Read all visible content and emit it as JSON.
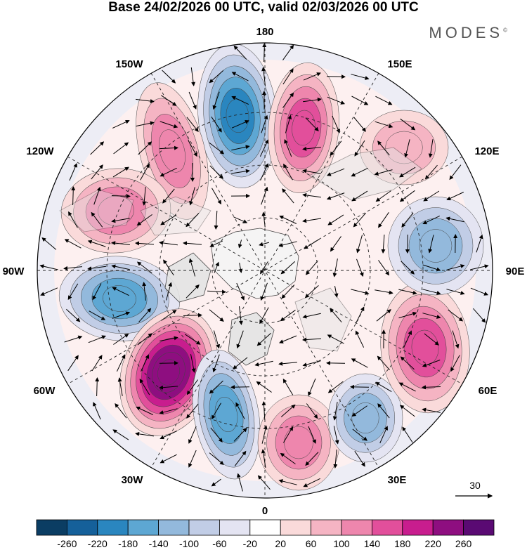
{
  "title": "Base 24/02/2026 00 UTC, valid 02/03/2026 00 UTC",
  "brand": "MODES",
  "brand_mark": "©",
  "longitude_labels": {
    "top": "180",
    "top_left": "150W",
    "top_right": "150E",
    "upper_left": "120W",
    "upper_right": "120E",
    "left": "90W",
    "right": "90E",
    "lower_left": "60W",
    "lower_right": "60E",
    "bottom_left": "30W",
    "bottom_right": "30E",
    "bottom": "0"
  },
  "reference_vector": {
    "label": "30"
  },
  "colorbar": {
    "ticks": [
      "-260",
      "-220",
      "-180",
      "-140",
      "-100",
      "-60",
      "-20",
      "20",
      "60",
      "100",
      "140",
      "180",
      "220",
      "260"
    ],
    "colors": [
      "#0b3d63",
      "#15609a",
      "#2a86bf",
      "#5da7d3",
      "#93b9dc",
      "#c1cde6",
      "#e4e4f2",
      "#ffffff",
      "#fadada",
      "#f5b4c3",
      "#ee86ad",
      "#e24f9b",
      "#c81d8e",
      "#8e0e80",
      "#5a0a73"
    ]
  },
  "anomaly_centers": [
    {
      "name": "pacific-negative",
      "lon": "180",
      "value": -200
    },
    {
      "name": "pacific-positive",
      "lon": "155E",
      "value": 160
    },
    {
      "name": "alaska-positive",
      "lon": "160W",
      "value": 100
    },
    {
      "name": "canada-positive",
      "lon": "125W",
      "value": 100
    },
    {
      "name": "hudson-negative",
      "lon": "90W",
      "value": -160
    },
    {
      "name": "atlantic-positive",
      "lon": "55W",
      "value": 250
    },
    {
      "name": "greenland-sea-negative",
      "lon": "30W",
      "value": -150
    },
    {
      "name": "europe-positive",
      "lon": "5E",
      "value": 100
    },
    {
      "name": "mediterranean-negative",
      "lon": "25E",
      "value": -100
    },
    {
      "name": "central-asia-positive",
      "lon": "70E",
      "value": 150
    },
    {
      "name": "siberia-negative",
      "lon": "95E",
      "value": -100
    },
    {
      "name": "east-asia-positive",
      "lon": "130E",
      "value": 60
    }
  ]
}
